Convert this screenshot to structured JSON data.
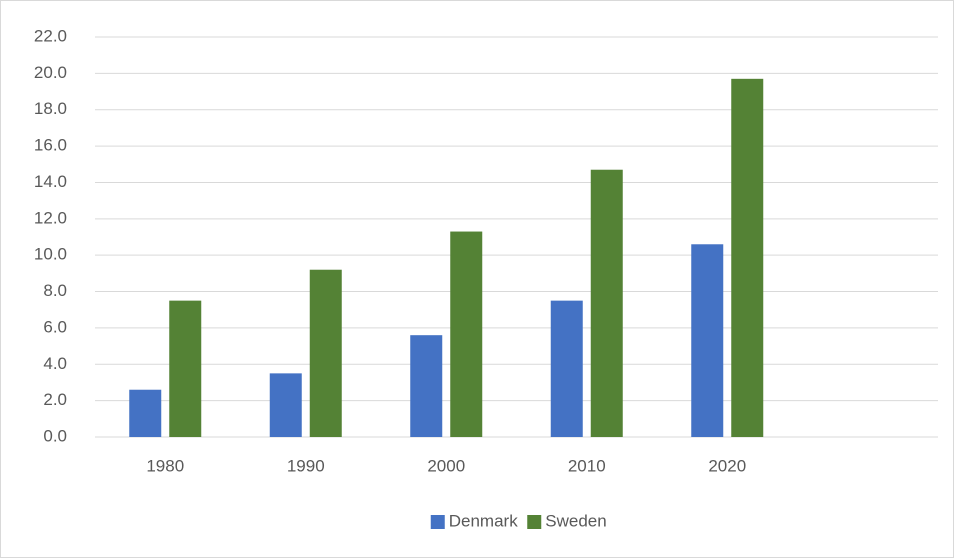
{
  "chart_data": {
    "type": "bar",
    "categories": [
      "1980",
      "1990",
      "2000",
      "2010",
      "2020",
      null
    ],
    "series": [
      {
        "name": "Denmark",
        "color": "#4472c4",
        "values": [
          2.6,
          3.5,
          5.6,
          7.5,
          10.6,
          null
        ]
      },
      {
        "name": "Sweden",
        "color": "#548235",
        "values": [
          7.5,
          9.2,
          11.3,
          14.7,
          19.7,
          null
        ]
      }
    ],
    "ylim": [
      0,
      22
    ],
    "yticks": [
      {
        "value": 0,
        "label": "0.0"
      },
      {
        "value": 2,
        "label": "2.0"
      },
      {
        "value": 4,
        "label": "4.0"
      },
      {
        "value": 6,
        "label": "6.0"
      },
      {
        "value": 8,
        "label": "8.0"
      },
      {
        "value": 10,
        "label": "10.0"
      },
      {
        "value": 12,
        "label": "12.0"
      },
      {
        "value": 14,
        "label": "14.0"
      },
      {
        "value": 16,
        "label": "16.0"
      },
      {
        "value": 18,
        "label": "18.0"
      },
      {
        "value": 20,
        "label": "20.0"
      },
      {
        "value": 22,
        "label": "22.0"
      }
    ],
    "grid": true,
    "legend": "bottom"
  }
}
